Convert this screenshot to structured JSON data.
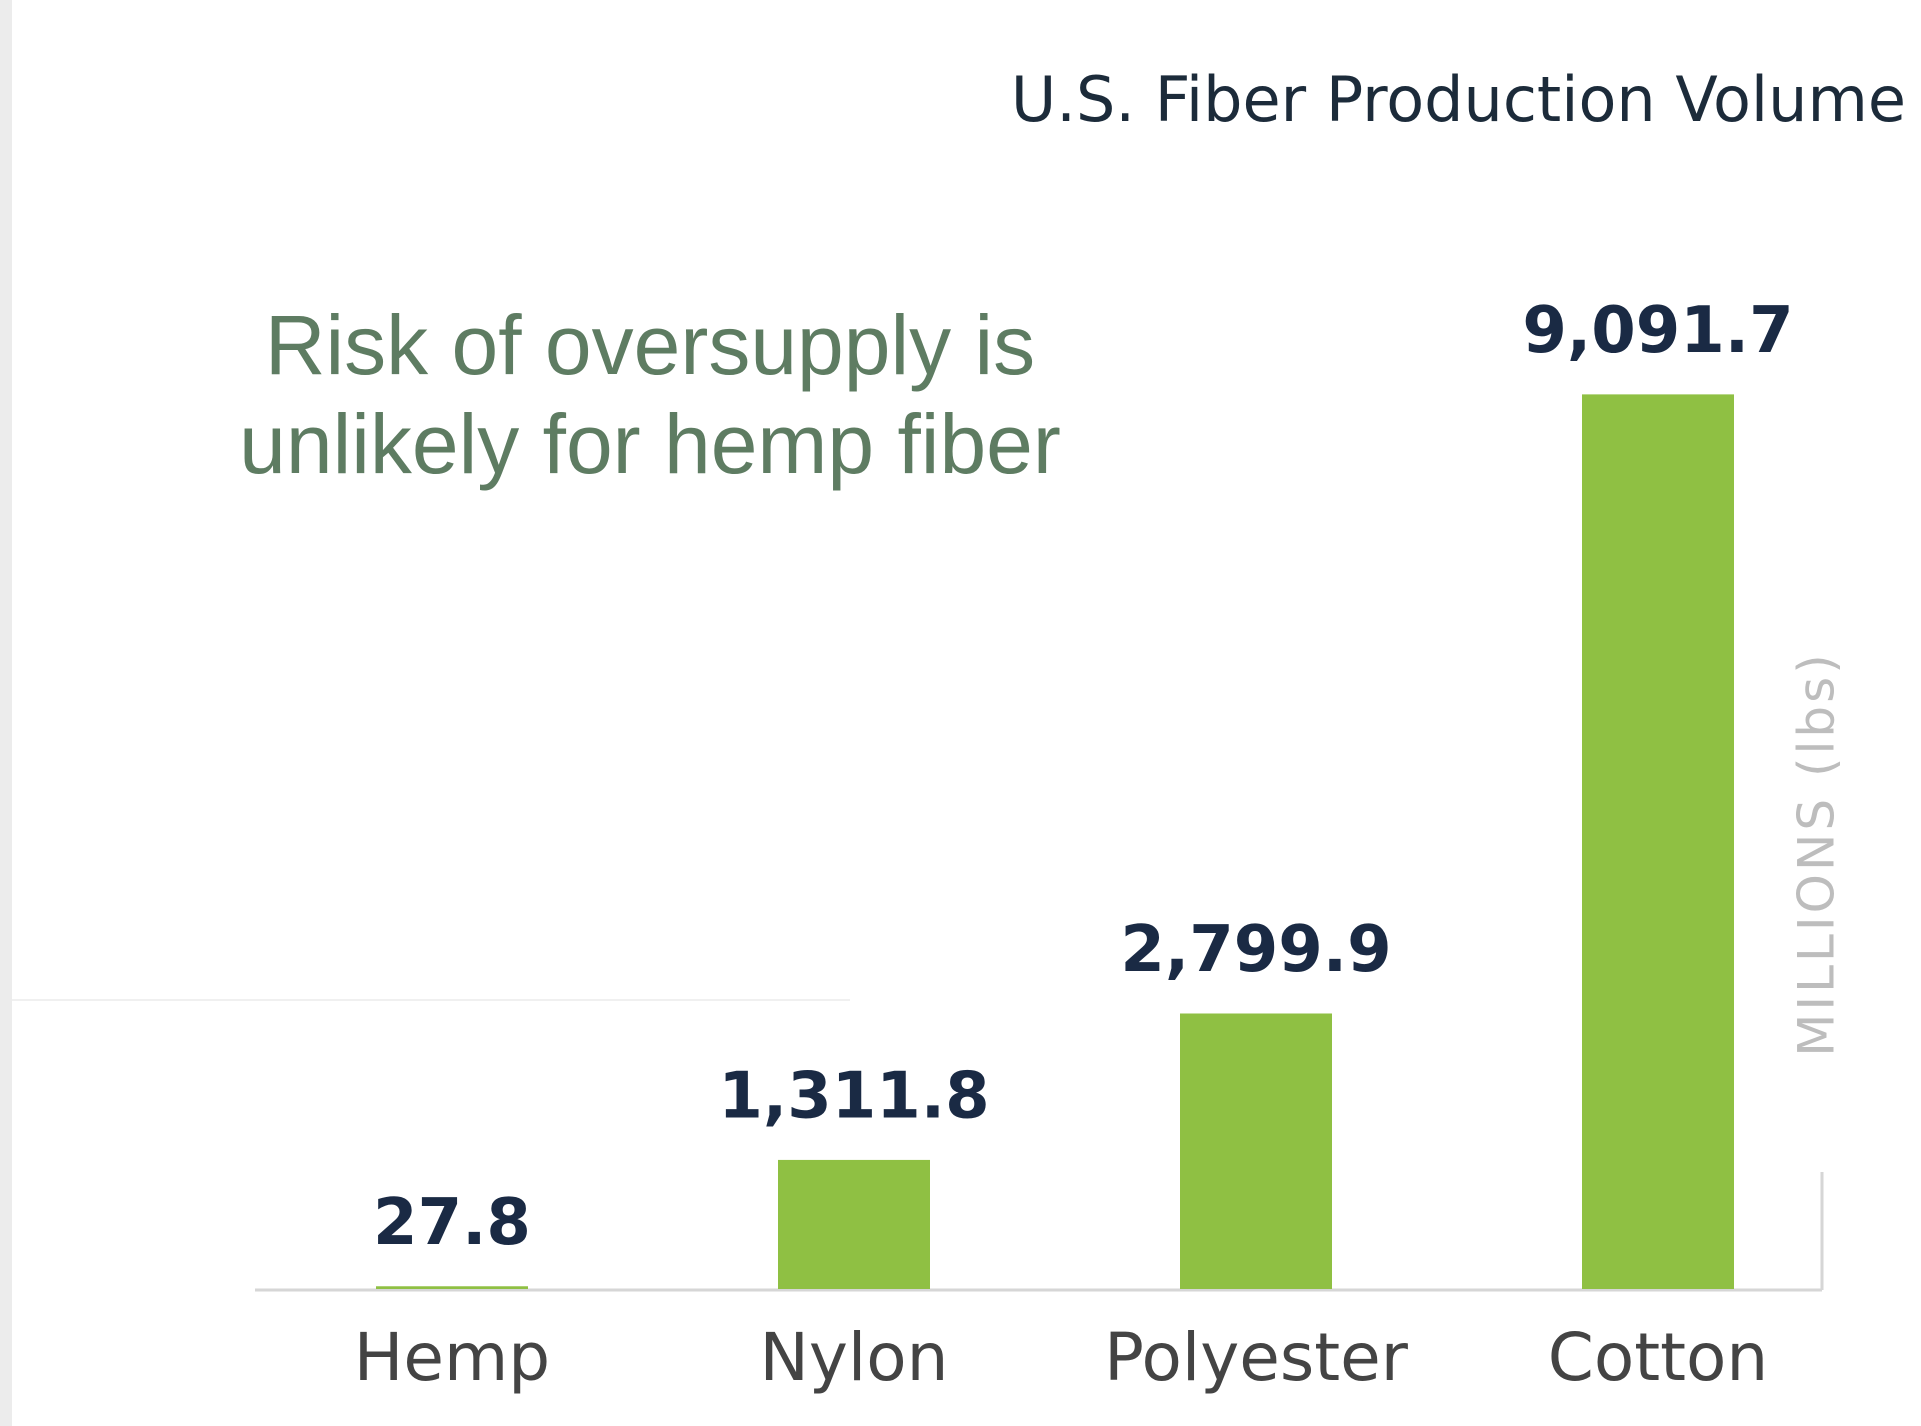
{
  "chart_data": {
    "type": "bar",
    "title": "U.S. Fiber Production Volume",
    "annotation": [
      "Risk of oversupply is",
      "unlikely for hemp fiber"
    ],
    "y_label": "MILLIONS (lbs)",
    "categories": [
      "Hemp",
      "Nylon",
      "Polyester",
      "Cotton"
    ],
    "values": [
      27.8,
      1311.8,
      2799.9,
      9091.7
    ],
    "value_labels": [
      "27.8",
      "1,311.8",
      "2,799.9",
      "9,091.7"
    ],
    "color": "#8fc043",
    "ylim": [
      0,
      10000
    ]
  }
}
